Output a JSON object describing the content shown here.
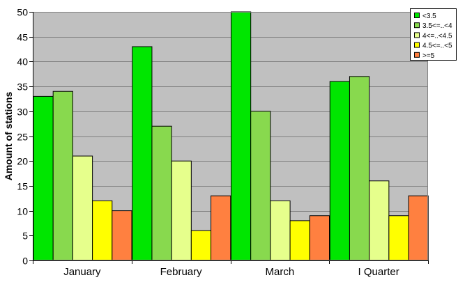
{
  "chart_data": {
    "type": "bar",
    "title": "",
    "xlabel": "",
    "ylabel": "Amount of stations",
    "ylim": [
      0,
      50
    ],
    "yticks": [
      0,
      5,
      10,
      15,
      20,
      25,
      30,
      35,
      40,
      45,
      50
    ],
    "grid": true,
    "legend_position": "top-right",
    "plot_background": "#c0c0c0",
    "categories": [
      "January",
      "February",
      "March",
      "I Quarter"
    ],
    "series": [
      {
        "name": "<3.5",
        "color": "#00e600",
        "values": [
          33,
          43,
          50,
          36
        ]
      },
      {
        "name": "3.5<=..<4",
        "color": "#88d94e",
        "values": [
          34,
          27,
          30,
          37
        ]
      },
      {
        "name": "4<=..<4.5",
        "color": "#e6ff8c",
        "values": [
          21,
          20,
          12,
          16
        ]
      },
      {
        "name": "4.5<=..<5",
        "color": "#ffff00",
        "values": [
          12,
          6,
          8,
          9
        ]
      },
      {
        "name": ">=5",
        "color": "#ff8040",
        "values": [
          10,
          13,
          9,
          13
        ]
      }
    ]
  }
}
